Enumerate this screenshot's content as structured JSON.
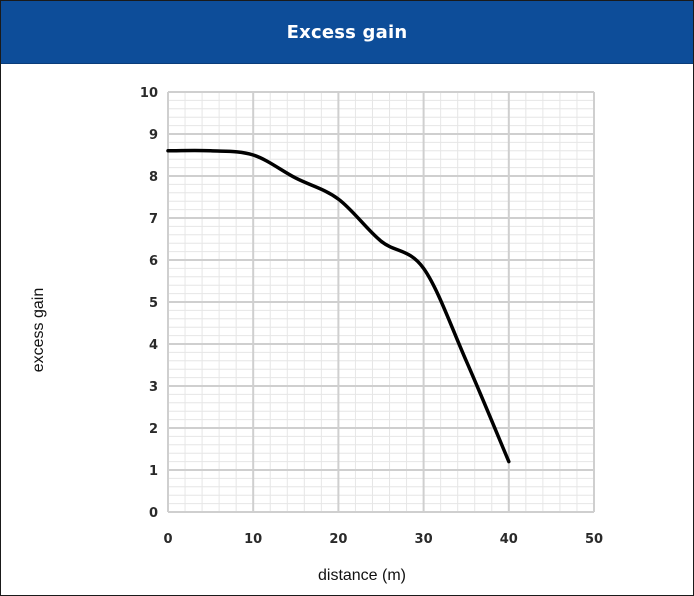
{
  "header": {
    "title": "Excess gain",
    "background": "#0d4d99"
  },
  "chart_data": {
    "type": "line",
    "title": "Excess gain",
    "xlabel": "distance (m)",
    "ylabel": "excess gain",
    "xlim": [
      0,
      50
    ],
    "ylim": [
      0,
      10
    ],
    "xticks": [
      0,
      10,
      20,
      30,
      40,
      50
    ],
    "yticks": [
      0,
      1,
      2,
      3,
      4,
      5,
      6,
      7,
      8,
      9,
      10
    ],
    "grid": true,
    "series": [
      {
        "color": "#000000",
        "x": [
          0,
          5,
          10,
          15,
          20,
          25,
          30,
          35,
          40
        ],
        "y": [
          8.6,
          8.6,
          8.5,
          7.95,
          7.45,
          6.45,
          5.8,
          3.6,
          1.2
        ]
      }
    ]
  }
}
